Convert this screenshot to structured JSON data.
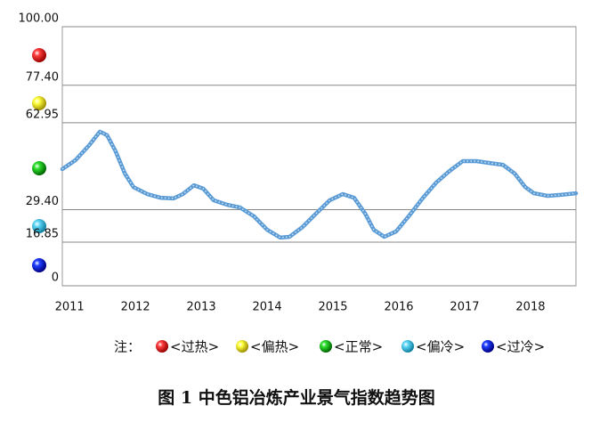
{
  "chart_data": {
    "type": "line",
    "title": "图 1 中色铝冶炼产业景气指数趋势图",
    "x": [
      2010.89,
      2011.09,
      2011.3,
      2011.46,
      2011.57,
      2011.7,
      2011.84,
      2011.97,
      2012.18,
      2012.38,
      2012.58,
      2012.72,
      2012.89,
      2013.03,
      2013.19,
      2013.39,
      2013.59,
      2013.8,
      2014.0,
      2014.2,
      2014.34,
      2014.54,
      2014.74,
      2014.95,
      2015.15,
      2015.32,
      2015.49,
      2015.62,
      2015.78,
      2015.96,
      2016.16,
      2016.36,
      2016.57,
      2016.77,
      2016.97,
      2017.18,
      2017.38,
      2017.58,
      2017.76,
      2017.92,
      2018.05,
      2018.26,
      2018.46,
      2018.69
    ],
    "values": [
      45.0,
      48.5,
      54.3,
      59.5,
      58.1,
      51.9,
      43.3,
      38.1,
      35.4,
      34.0,
      33.7,
      35.4,
      38.8,
      37.5,
      33.0,
      31.3,
      30.2,
      26.8,
      21.6,
      18.6,
      18.9,
      22.7,
      27.8,
      33.0,
      35.4,
      34.0,
      27.8,
      21.6,
      18.9,
      21.0,
      27.1,
      33.7,
      39.9,
      44.3,
      48.1,
      48.1,
      47.4,
      46.7,
      43.3,
      38.1,
      35.7,
      34.7,
      35.1,
      35.7
    ],
    "color": "#5b9bd5",
    "xlim": [
      2010.89,
      2018.69
    ],
    "xticks": [
      2011,
      2012,
      2013,
      2014,
      2015,
      2016,
      2017,
      2018
    ],
    "ylim": [
      0,
      100
    ],
    "yticks": [
      0,
      16.85,
      {
        "value": 29.4,
        "label": "29.40"
      },
      62.95,
      {
        "value": 77.4,
        "label": "77.40"
      },
      {
        "value": 100,
        "label": "100.00"
      }
    ],
    "grid": true,
    "legend": {
      "title": "注：",
      "items": [
        "<过热>",
        "<偏热>",
        "<正常>",
        "<偏冷>",
        "<过冷>"
      ],
      "colors": [
        "#e00000",
        "#f0e000",
        "#10c010",
        "#40c8e8",
        "#0010d0"
      ]
    }
  }
}
